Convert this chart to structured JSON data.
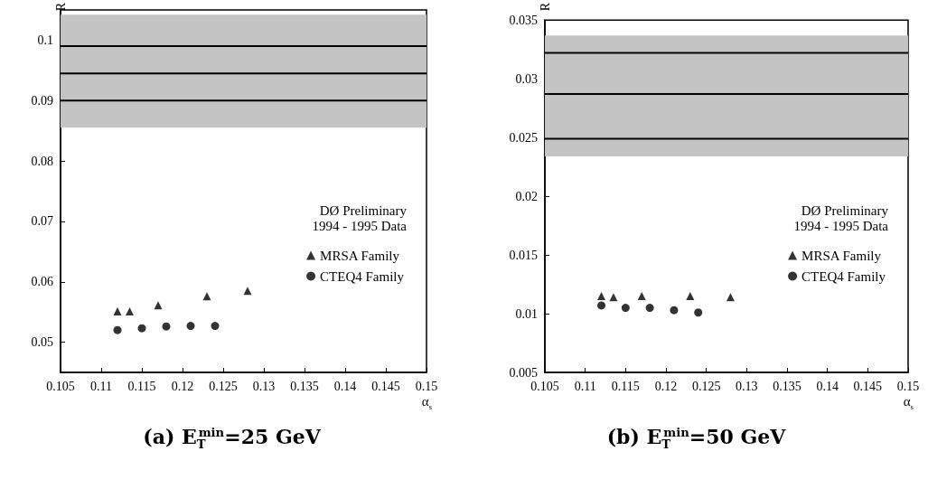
{
  "chart_data": [
    {
      "type": "scatter",
      "subtitle": "(a) E$_{T}$$^{min}$=25 GeV",
      "xlabel": "α$_{s}$",
      "ylabel": "R",
      "annotations": [
        "DØ Preliminary",
        "1994 - 1995 Data"
      ],
      "series": [
        {
          "name": "MRSA Family",
          "color": "#000000",
          "marker": "triangle",
          "x": [
            0.112,
            0.1135,
            0.117,
            0.123,
            0.128
          ],
          "values": [
            0.0551,
            0.0551,
            0.0561,
            0.0576,
            0.0585
          ]
        },
        {
          "name": "CTEQ4 Family",
          "color": "#000000",
          "marker": "circle",
          "x": [
            0.112,
            0.115,
            0.118,
            0.121,
            0.124
          ],
          "values": [
            0.052,
            0.0523,
            0.0526,
            0.0527,
            0.0527
          ]
        }
      ],
      "xlim": [
        0.105,
        0.15
      ],
      "xticks": [
        0.105,
        0.11,
        0.115,
        0.12,
        0.125,
        0.13,
        0.135,
        0.14,
        0.145,
        0.15
      ],
      "ylim": [
        0.045,
        0.105
      ],
      "yticks": [
        0.05,
        0.06,
        0.07,
        0.08,
        0.09,
        0.1
      ],
      "bands": [
        {
          "axis": "y",
          "from": 0.0855,
          "to": 0.1042,
          "color": "#c4c4c4"
        }
      ],
      "ref_lines": [
        {
          "axis": "y",
          "value": 0.099,
          "color": "#000000"
        },
        {
          "axis": "y",
          "value": 0.0945,
          "color": "#000000"
        },
        {
          "axis": "y",
          "value": 0.09,
          "color": "#000000"
        }
      ],
      "legend": "right",
      "grid": false
    },
    {
      "type": "scatter",
      "subtitle": "(b) E$_{T}$$^{min}$=50 GeV",
      "xlabel": "α$_{s}$",
      "ylabel": "R",
      "annotations": [
        "DØ Preliminary",
        "1994 - 1995 Data"
      ],
      "series": [
        {
          "name": "MRSA Family",
          "color": "#000000",
          "marker": "triangle",
          "x": [
            0.112,
            0.1135,
            0.117,
            0.123,
            0.128
          ],
          "values": [
            0.0115,
            0.0114,
            0.0115,
            0.0115,
            0.0114
          ]
        },
        {
          "name": "CTEQ4 Family",
          "color": "#000000",
          "marker": "circle",
          "x": [
            0.112,
            0.115,
            0.118,
            0.121,
            0.124
          ],
          "values": [
            0.0107,
            0.0105,
            0.0105,
            0.0103,
            0.0101
          ]
        }
      ],
      "xlim": [
        0.105,
        0.15
      ],
      "xticks": [
        0.105,
        0.11,
        0.115,
        0.12,
        0.125,
        0.13,
        0.135,
        0.14,
        0.145,
        0.15
      ],
      "ylim": [
        0.005,
        0.035
      ],
      "yticks": [
        0.005,
        0.01,
        0.015,
        0.02,
        0.025,
        0.03,
        0.035
      ],
      "bands": [
        {
          "axis": "y",
          "from": 0.0234,
          "to": 0.0337,
          "color": "#c4c4c4"
        }
      ],
      "ref_lines": [
        {
          "axis": "y",
          "value": 0.0322,
          "color": "#000000"
        },
        {
          "axis": "y",
          "value": 0.0287,
          "color": "#000000"
        },
        {
          "axis": "y",
          "value": 0.0249,
          "color": "#000000"
        }
      ],
      "legend": "right",
      "grid": false
    }
  ]
}
